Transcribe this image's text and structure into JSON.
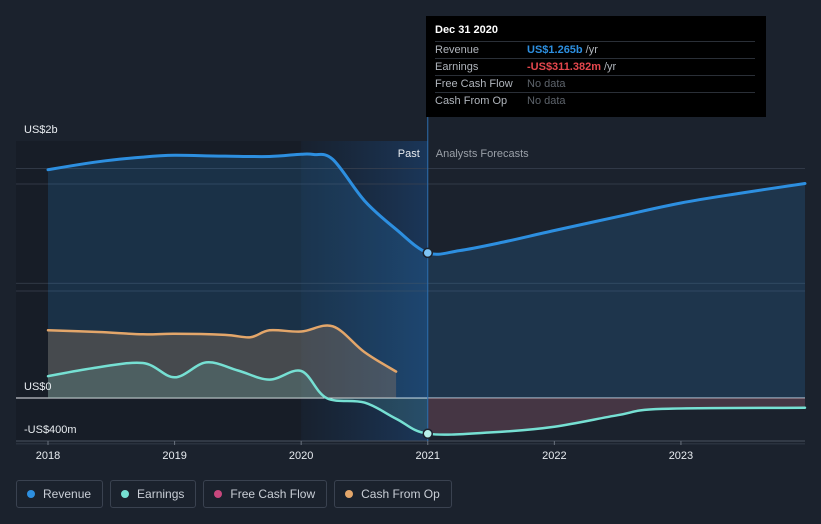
{
  "chart_data": {
    "type": "line",
    "y_unit_labels": [
      "US$2b",
      "US$0",
      "-US$400m"
    ],
    "x_tick_labels": [
      "2018",
      "2019",
      "2020",
      "2021",
      "2022",
      "2023"
    ],
    "xlim": [
      2017.9,
      2023.98
    ],
    "ylim": [
      -420,
      2240
    ],
    "past_label": "Past",
    "forecast_label": "Analysts Forecasts",
    "divider_x": 2021.0,
    "series": [
      {
        "name": "Revenue",
        "color": "#2d8fe0",
        "points": [
          [
            2018.0,
            1990
          ],
          [
            2018.4,
            2060
          ],
          [
            2018.75,
            2100
          ],
          [
            2019.0,
            2115
          ],
          [
            2019.4,
            2108
          ],
          [
            2019.75,
            2105
          ],
          [
            2020.0,
            2125
          ],
          [
            2020.1,
            2122
          ],
          [
            2020.25,
            2080
          ],
          [
            2020.5,
            1720
          ],
          [
            2020.75,
            1470
          ],
          [
            2021.0,
            1265
          ]
        ],
        "forecast_points": [
          [
            2021.0,
            1265
          ],
          [
            2021.25,
            1285
          ],
          [
            2021.6,
            1360
          ],
          [
            2022.0,
            1460
          ],
          [
            2022.5,
            1580
          ],
          [
            2023.0,
            1700
          ],
          [
            2023.5,
            1790
          ],
          [
            2023.98,
            1870
          ]
        ]
      },
      {
        "name": "Earnings",
        "color": "#76e0d3",
        "points": [
          [
            2018.0,
            190
          ],
          [
            2018.35,
            260
          ],
          [
            2018.75,
            305
          ],
          [
            2019.0,
            180
          ],
          [
            2019.25,
            310
          ],
          [
            2019.5,
            240
          ],
          [
            2019.75,
            160
          ],
          [
            2020.0,
            235
          ],
          [
            2020.2,
            0
          ],
          [
            2020.5,
            -40
          ],
          [
            2020.75,
            -180
          ],
          [
            2021.0,
            -311.4
          ]
        ],
        "forecast_points": [
          [
            2021.0,
            -311.4
          ],
          [
            2021.5,
            -300
          ],
          [
            2022.0,
            -250
          ],
          [
            2022.5,
            -150
          ],
          [
            2022.85,
            -95
          ],
          [
            2023.98,
            -85
          ]
        ]
      },
      {
        "name": "Free Cash Flow",
        "color": "#c8477d",
        "points": [],
        "forecast_points": []
      },
      {
        "name": "Cash From Op",
        "color": "#e3a66a",
        "points": [
          [
            2018.0,
            590
          ],
          [
            2018.4,
            575
          ],
          [
            2018.75,
            555
          ],
          [
            2019.0,
            560
          ],
          [
            2019.4,
            550
          ],
          [
            2019.6,
            530
          ],
          [
            2019.75,
            590
          ],
          [
            2020.0,
            580
          ],
          [
            2020.25,
            625
          ],
          [
            2020.5,
            400
          ],
          [
            2020.75,
            230
          ]
        ],
        "forecast_points": []
      }
    ],
    "highlight": {
      "x": 2021.0,
      "revenue": 1265,
      "earnings": -311.4
    }
  },
  "tooltip": {
    "date": "Dec 31 2020",
    "rows": [
      {
        "label": "Revenue",
        "value": "US$1.265b",
        "unit": "/yr",
        "color": "#2d8fe0"
      },
      {
        "label": "Earnings",
        "value": "-US$311.382m",
        "unit": "/yr",
        "color": "#e5474d"
      },
      {
        "label": "Free Cash Flow",
        "value": "No data",
        "unit": ""
      },
      {
        "label": "Cash From Op",
        "value": "No data",
        "unit": ""
      }
    ]
  },
  "legend": [
    {
      "label": "Revenue",
      "color": "#2d8fe0"
    },
    {
      "label": "Earnings",
      "color": "#76e0d3"
    },
    {
      "label": "Free Cash Flow",
      "color": "#c8477d"
    },
    {
      "label": "Cash From Op",
      "color": "#e3a66a"
    }
  ]
}
